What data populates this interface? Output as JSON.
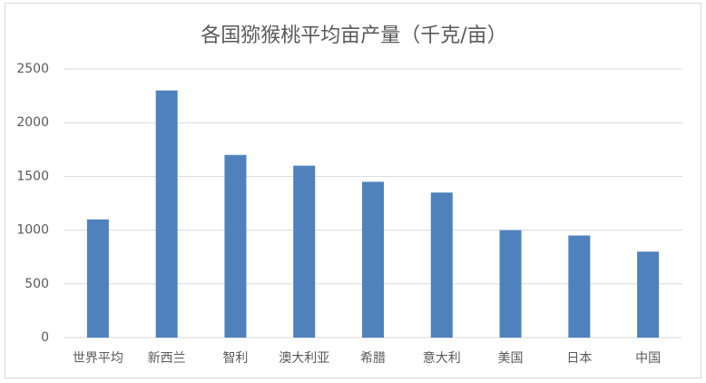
{
  "chart_data": {
    "type": "bar",
    "title": "各国猕猴桃平均亩产量（千克/亩）",
    "categories": [
      "世界平均",
      "新西兰",
      "智利",
      "澳大利亚",
      "希腊",
      "意大利",
      "美国",
      "日本",
      "中国"
    ],
    "values": [
      1100,
      2300,
      1700,
      1600,
      1450,
      1350,
      1000,
      950,
      800
    ],
    "color": "#4f81bd",
    "ylim": [
      0,
      2500
    ],
    "yticks": [
      0,
      500,
      1000,
      1500,
      2000,
      2500
    ],
    "grid": true
  }
}
